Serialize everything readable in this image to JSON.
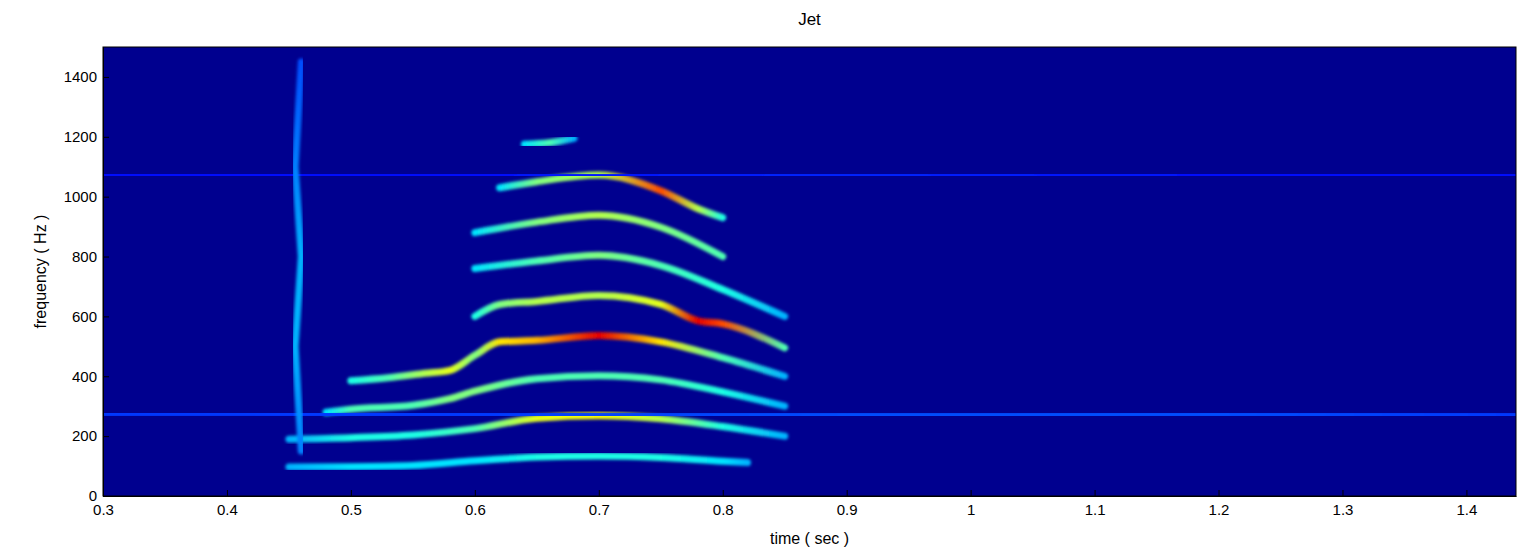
{
  "chart_data": {
    "type": "line",
    "title": "Jet",
    "x_label": "time ( sec )",
    "y_label": "frequency ( Hz )",
    "xlim": [
      0.3,
      1.44
    ],
    "ylim": [
      0,
      1500
    ],
    "xticks": [
      0.3,
      0.4,
      0.5,
      0.6,
      0.7,
      0.8,
      0.9,
      1,
      1.1,
      1.2,
      1.3,
      1.4
    ],
    "yticks": [
      0,
      200,
      400,
      600,
      800,
      1000,
      1200,
      1400
    ],
    "zlim": [
      0,
      1
    ],
    "series": [
      {
        "x": [
          0.45,
          0.5,
          0.55,
          0.6,
          0.65,
          0.7,
          0.75,
          0.8,
          0.82
        ],
        "values": [
          97,
          98,
          102,
          118,
          130,
          134,
          129,
          116,
          112
        ],
        "intensity": [
          0.3,
          0.35,
          0.35,
          0.35,
          0.4,
          0.4,
          0.4,
          0.35,
          0.3
        ]
      },
      {
        "x": [
          0.45,
          0.5,
          0.55,
          0.6,
          0.65,
          0.7,
          0.75,
          0.8,
          0.85
        ],
        "values": [
          190,
          195,
          204,
          225,
          260,
          268,
          258,
          232,
          200
        ],
        "intensity": [
          0.3,
          0.4,
          0.4,
          0.45,
          0.6,
          0.62,
          0.55,
          0.4,
          0.3
        ]
      },
      {
        "x": [
          0.48,
          0.5,
          0.55,
          0.58,
          0.6,
          0.65,
          0.7,
          0.75,
          0.8,
          0.85
        ],
        "values": [
          280,
          290,
          303,
          325,
          350,
          392,
          402,
          388,
          348,
          300
        ],
        "intensity": [
          0.35,
          0.45,
          0.45,
          0.5,
          0.5,
          0.45,
          0.45,
          0.45,
          0.4,
          0.3
        ]
      },
      {
        "x": [
          0.5,
          0.53,
          0.56,
          0.58,
          0.6,
          0.62,
          0.65,
          0.7,
          0.75,
          0.8,
          0.85
        ],
        "values": [
          385,
          395,
          410,
          420,
          470,
          515,
          520,
          536,
          515,
          462,
          400
        ],
        "intensity": [
          0.4,
          0.45,
          0.55,
          0.6,
          0.5,
          0.65,
          0.7,
          0.9,
          0.65,
          0.45,
          0.3
        ]
      },
      {
        "x": [
          0.6,
          0.62,
          0.65,
          0.7,
          0.75,
          0.78,
          0.8,
          0.85
        ],
        "values": [
          600,
          640,
          650,
          670,
          640,
          585,
          575,
          495
        ],
        "intensity": [
          0.4,
          0.5,
          0.55,
          0.55,
          0.6,
          0.9,
          0.8,
          0.45
        ]
      },
      {
        "x": [
          0.6,
          0.65,
          0.7,
          0.75,
          0.8,
          0.85
        ],
        "values": [
          760,
          785,
          804,
          770,
          690,
          600
        ],
        "intensity": [
          0.35,
          0.45,
          0.5,
          0.45,
          0.4,
          0.3
        ]
      },
      {
        "x": [
          0.6,
          0.65,
          0.7,
          0.75,
          0.8
        ],
        "values": [
          880,
          915,
          938,
          898,
          800
        ],
        "intensity": [
          0.35,
          0.5,
          0.55,
          0.5,
          0.45
        ]
      },
      {
        "x": [
          0.62,
          0.65,
          0.7,
          0.75,
          0.78,
          0.8
        ],
        "values": [
          1030,
          1050,
          1072,
          1020,
          960,
          930
        ],
        "intensity": [
          0.35,
          0.5,
          0.55,
          0.8,
          0.55,
          0.4
        ]
      },
      {
        "x": [
          0.64,
          0.66,
          0.68
        ],
        "values": [
          1175,
          1180,
          1195
        ],
        "intensity": [
          0.35,
          0.45,
          0.3
        ]
      },
      {
        "x": [
          0.3,
          0.6,
          0.9,
          1.2,
          1.44
        ],
        "values": [
          275,
          272,
          270,
          272,
          270
        ],
        "intensity": [
          0.18,
          0.18,
          0.2,
          0.2,
          0.18
        ]
      },
      {
        "x": [
          0.3,
          0.6,
          0.9,
          1.2,
          1.44
        ],
        "values": [
          1072,
          1070,
          1070,
          1072,
          1070
        ],
        "intensity": [
          0.14,
          0.14,
          0.16,
          0.14,
          0.14
        ]
      },
      {
        "x": [
          0.46,
          0.455,
          0.46,
          0.455,
          0.46
        ],
        "values": [
          150,
          500,
          800,
          1100,
          1450
        ],
        "intensity": [
          0.25,
          0.3,
          0.3,
          0.25,
          0.2
        ]
      }
    ]
  }
}
